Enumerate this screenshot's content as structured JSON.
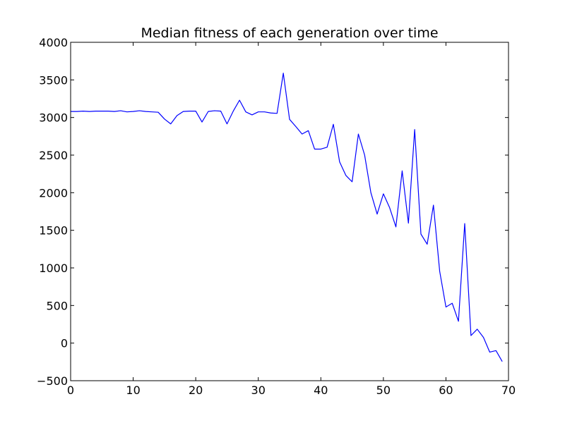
{
  "chart_data": {
    "type": "line",
    "title": "Median fitness of each generation over time",
    "xlabel": "",
    "ylabel": "",
    "xlim": [
      0,
      70
    ],
    "ylim": [
      -500,
      4000
    ],
    "x_ticks": [
      0,
      10,
      20,
      30,
      40,
      50,
      60,
      70
    ],
    "y_ticks": [
      -500,
      0,
      500,
      1000,
      1500,
      2000,
      2500,
      3000,
      3500,
      4000
    ],
    "x_tick_labels": [
      "0",
      "10",
      "20",
      "30",
      "40",
      "50",
      "60",
      "70"
    ],
    "y_tick_labels": [
      "−500",
      "0",
      "500",
      "1000",
      "1500",
      "2000",
      "2500",
      "3000",
      "3500",
      "4000"
    ],
    "grid": false,
    "legend": "none",
    "series": [
      {
        "color": "#0000ff",
        "x": [
          0,
          1,
          2,
          3,
          4,
          5,
          6,
          7,
          8,
          9,
          10,
          11,
          12,
          13,
          14,
          15,
          16,
          17,
          18,
          19,
          20,
          21,
          22,
          23,
          24,
          25,
          26,
          27,
          28,
          29,
          30,
          31,
          32,
          33,
          34,
          35,
          36,
          37,
          38,
          39,
          40,
          41,
          42,
          43,
          44,
          45,
          46,
          47,
          48,
          49,
          50,
          51,
          52,
          53,
          54,
          55,
          56,
          57,
          58,
          59,
          60,
          61,
          62,
          63,
          64,
          65,
          66,
          67,
          68,
          69
        ],
        "y": [
          3080,
          3080,
          3085,
          3080,
          3085,
          3085,
          3085,
          3080,
          3090,
          3075,
          3080,
          3090,
          3080,
          3075,
          3070,
          2980,
          2915,
          3025,
          3080,
          3085,
          3085,
          2940,
          3080,
          3090,
          3085,
          2915,
          3085,
          3230,
          3075,
          3035,
          3075,
          3075,
          3060,
          3055,
          3590,
          2975,
          2880,
          2780,
          2825,
          2580,
          2580,
          2605,
          2910,
          2410,
          2230,
          2145,
          2780,
          2500,
          2000,
          1715,
          1985,
          1800,
          1545,
          2290,
          1595,
          2840,
          1450,
          1315,
          1835,
          955,
          480,
          530,
          290,
          1590,
          100,
          185,
          75,
          -120,
          -100,
          -245
        ]
      }
    ]
  }
}
